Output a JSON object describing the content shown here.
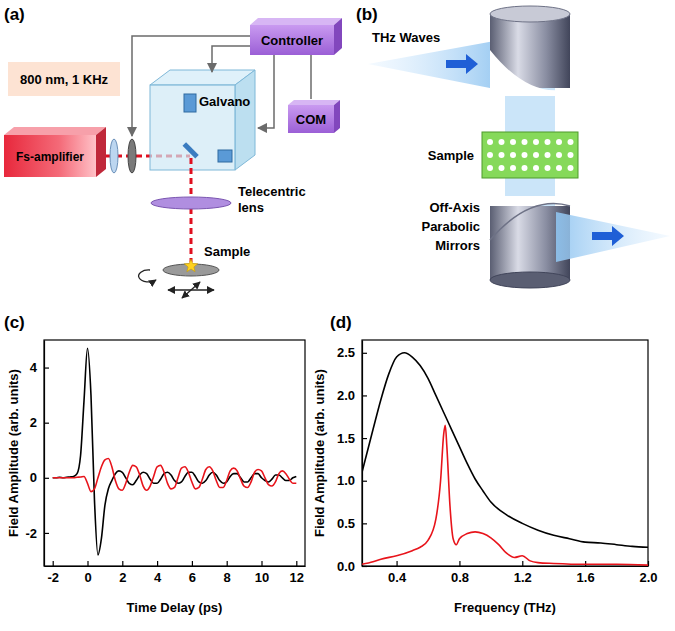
{
  "panels": {
    "a": {
      "letter": "(a)",
      "laser_params": "800 nm, 1 KHz",
      "laser": "Fs-amplifier",
      "scanner": "Galvano",
      "controller": "Controller",
      "computer": "COM",
      "lens_lines": [
        "Telecentric",
        "lens"
      ],
      "sample": "Sample"
    },
    "b": {
      "letter": "(b)",
      "beam": "THz Waves",
      "sample": "Sample",
      "mirror_lines": [
        "Off-Axis",
        "Parabolic",
        "Mirrors"
      ]
    },
    "c": {
      "letter": "(c)"
    },
    "d": {
      "letter": "(d)"
    }
  },
  "chart_data": [
    {
      "type": "line",
      "x_label": "Time Delay (ps)",
      "y_label": "Field Amplitude (arb. units)",
      "x": [
        -2,
        -1.8,
        -1.6,
        -1.4,
        -1.2,
        -1,
        -0.8,
        -0.6,
        -0.4,
        -0.2,
        0,
        0.2,
        0.4,
        0.6,
        0.8,
        1,
        1.2,
        1.4,
        1.6,
        1.8,
        2,
        2.2,
        2.4,
        2.6,
        2.8,
        3,
        3.2,
        3.4,
        3.6,
        3.8,
        4,
        4.2,
        4.4,
        4.6,
        4.8,
        5,
        5.2,
        5.4,
        5.6,
        5.8,
        6,
        6.2,
        6.4,
        6.6,
        6.8,
        7,
        7.2,
        7.4,
        7.6,
        7.8,
        8,
        8.2,
        8.4,
        8.6,
        8.8,
        9,
        9.2,
        9.4,
        9.6,
        9.8,
        10,
        10.2,
        10.4,
        10.6,
        10.8,
        11,
        11.2,
        11.4,
        11.6,
        11.8,
        12
      ],
      "xlim": [
        -2.5,
        12.5
      ],
      "xticks": [
        -2,
        0,
        2,
        4,
        6,
        8,
        10,
        12
      ],
      "ylim": [
        -3.2,
        5
      ],
      "yticks": [
        -2,
        0,
        2,
        4
      ],
      "series": [
        {
          "color": "#000000",
          "values": [
            0,
            0,
            0.02,
            0,
            0.02,
            0.03,
            0.05,
            0.15,
            0.8,
            2.8,
            4.7,
            3.0,
            -0.8,
            -2.8,
            -2.2,
            -1.0,
            -0.4,
            -0.1,
            0.15,
            0.25,
            0.2,
            0,
            -0.2,
            -0.25,
            -0.1,
            0.1,
            0.2,
            0.15,
            -0.05,
            -0.2,
            -0.2,
            -0.05,
            0.15,
            0.2,
            0.1,
            -0.1,
            -0.2,
            -0.15,
            0.05,
            0.2,
            0.2,
            0.05,
            -0.15,
            -0.2,
            -0.1,
            0.1,
            0.2,
            0.1,
            -0.1,
            -0.2,
            -0.15,
            0.05,
            0.15,
            0.15,
            0,
            -0.15,
            -0.15,
            0,
            0.15,
            0.15,
            0,
            -0.1,
            -0.15,
            -0.05,
            0.1,
            0.1,
            0,
            -0.1,
            -0.1,
            0,
            0.05
          ]
        },
        {
          "color": "#e8141b",
          "values": [
            0,
            0,
            0,
            0,
            0,
            0,
            0,
            0.02,
            0.03,
            0.05,
            -0.2,
            -0.5,
            -0.4,
            0,
            0.4,
            0.65,
            0.7,
            0.4,
            -0.1,
            -0.4,
            -0.45,
            -0.2,
            0.2,
            0.45,
            0.4,
            0.1,
            -0.3,
            -0.45,
            -0.3,
            0.05,
            0.4,
            0.45,
            0.2,
            -0.2,
            -0.4,
            -0.35,
            0,
            0.35,
            0.4,
            0.2,
            -0.15,
            -0.4,
            -0.35,
            -0.05,
            0.3,
            0.4,
            0.25,
            -0.1,
            -0.35,
            -0.35,
            -0.1,
            0.25,
            0.35,
            0.25,
            -0.05,
            -0.3,
            -0.35,
            -0.15,
            0.2,
            0.3,
            0.25,
            0,
            -0.25,
            -0.3,
            -0.15,
            0.15,
            0.25,
            0.15,
            -0.05,
            -0.2,
            -0.2
          ]
        }
      ]
    },
    {
      "type": "line",
      "x_label": "Frequency (THz)",
      "y_label": "Field Amplitude (arb. units)",
      "xlim": [
        0.18,
        2.0
      ],
      "xticks": [
        0.4,
        0.8,
        1.2,
        1.6,
        {
          "value": 2,
          "label": "2.0"
        }
      ],
      "ylim": [
        0,
        2.65
      ],
      "yticks": [
        {
          "value": 0,
          "label": "0.0"
        },
        0.5,
        {
          "value": 1,
          "label": "1.0"
        },
        1.5,
        {
          "value": 2,
          "label": "2.0"
        },
        2.5
      ],
      "series": [
        {
          "color": "#000000",
          "x": [
            0.18,
            0.25,
            0.3,
            0.35,
            0.4,
            0.45,
            0.5,
            0.55,
            0.6,
            0.65,
            0.7,
            0.75,
            0.8,
            0.85,
            0.9,
            0.95,
            1.0,
            1.1,
            1.2,
            1.3,
            1.4,
            1.5,
            1.6,
            1.7,
            1.8,
            1.9,
            2.0
          ],
          "values": [
            1.1,
            1.6,
            1.95,
            2.25,
            2.45,
            2.5,
            2.45,
            2.35,
            2.2,
            2.0,
            1.8,
            1.6,
            1.4,
            1.2,
            1.02,
            0.88,
            0.75,
            0.6,
            0.5,
            0.42,
            0.36,
            0.32,
            0.28,
            0.27,
            0.25,
            0.23,
            0.22
          ]
        },
        {
          "color": "#e8141b",
          "x": [
            0.18,
            0.25,
            0.3,
            0.4,
            0.5,
            0.55,
            0.6,
            0.65,
            0.68,
            0.7,
            0.71,
            0.72,
            0.74,
            0.76,
            0.78,
            0.8,
            0.85,
            0.9,
            0.95,
            1.0,
            1.05,
            1.1,
            1.15,
            1.2,
            1.25,
            1.3,
            1.4,
            1.6,
            1.8,
            2.0
          ],
          "values": [
            0.02,
            0.05,
            0.08,
            0.12,
            0.18,
            0.22,
            0.3,
            0.55,
            1.0,
            1.55,
            1.65,
            1.4,
            0.7,
            0.32,
            0.25,
            0.32,
            0.38,
            0.4,
            0.38,
            0.33,
            0.25,
            0.15,
            0.1,
            0.12,
            0.06,
            0.04,
            0.03,
            0.02,
            0.02,
            0.01
          ]
        }
      ]
    }
  ]
}
